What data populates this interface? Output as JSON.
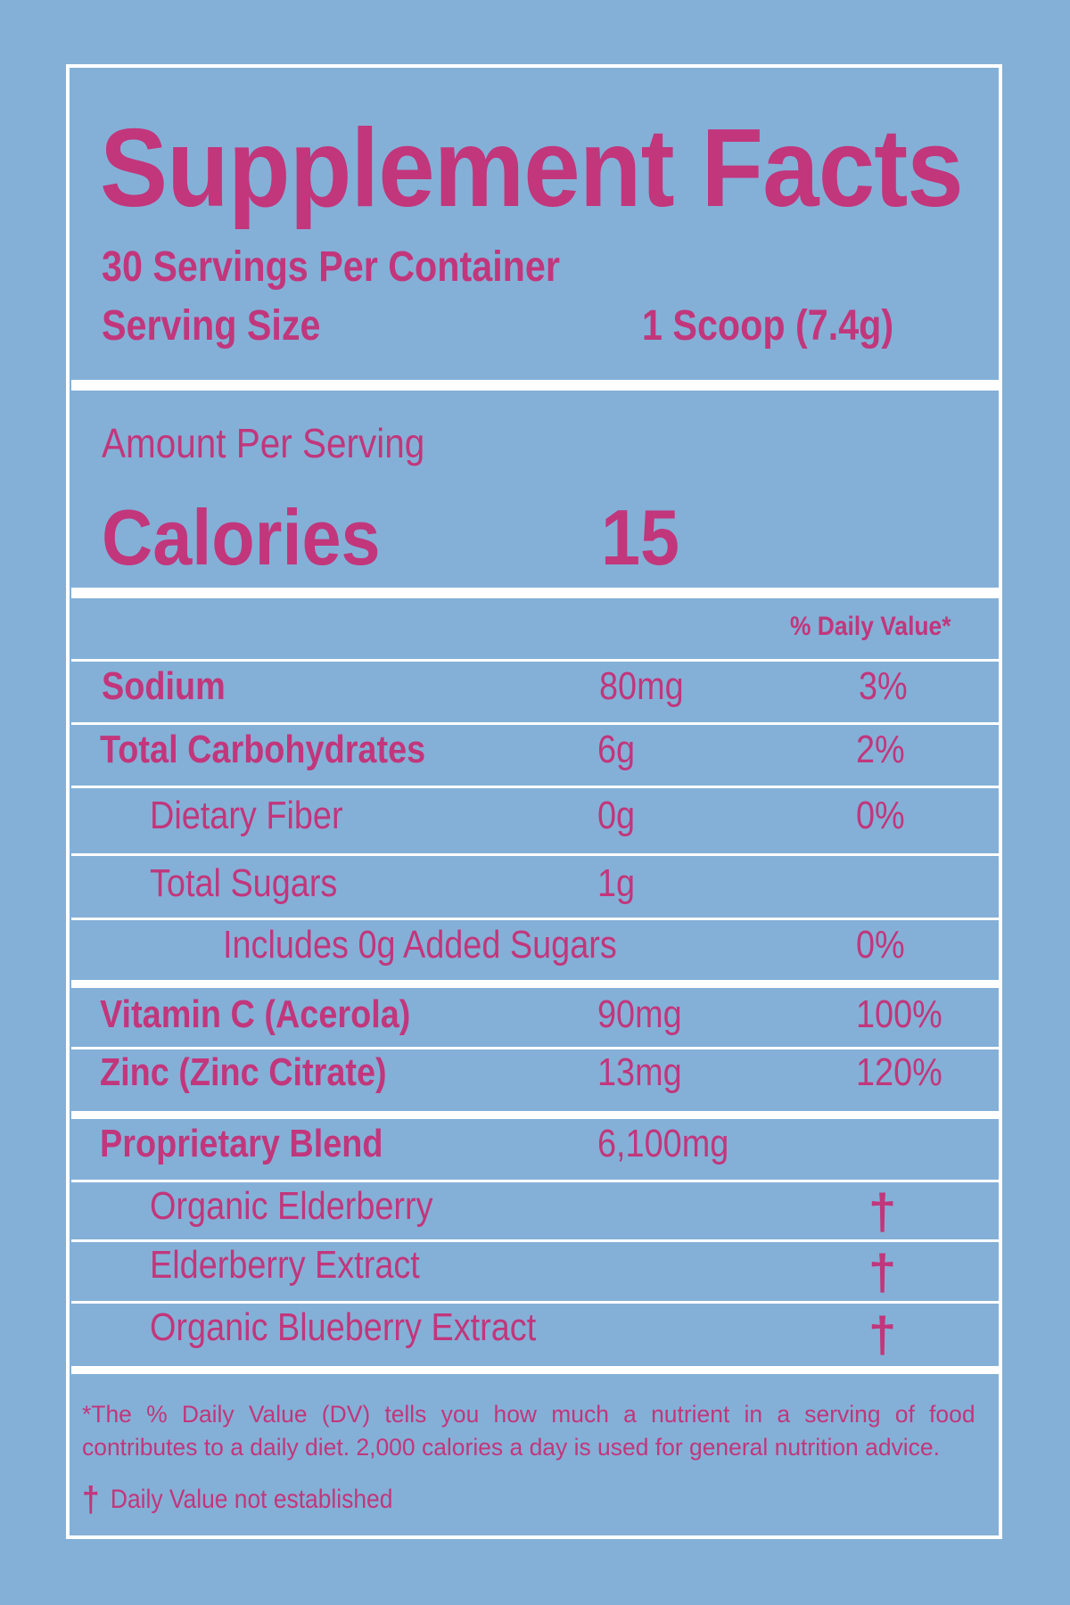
{
  "title": "Supplement Facts",
  "servings_per_container": "30 Servings Per Container",
  "serving_size": {
    "label": "Serving Size",
    "value": "1 Scoop (7.4g)"
  },
  "amount_per_serving": "Amount Per Serving",
  "calories": {
    "label": "Calories",
    "value": "15"
  },
  "daily_value_header": "% Daily Value*",
  "rows": [
    {
      "name": "Sodium",
      "amount": "80mg",
      "dv": "3%"
    },
    {
      "name": "Total Carbohydrates",
      "amount": "6g",
      "dv": "2%"
    },
    {
      "name": "Dietary Fiber",
      "amount": "0g",
      "dv": "0%"
    },
    {
      "name": "Total Sugars",
      "amount": "1g",
      "dv": ""
    },
    {
      "name": "Includes 0g Added Sugars",
      "amount": "",
      "dv": "0%"
    },
    {
      "name": "Vitamin C (Acerola)",
      "amount": "90mg",
      "dv": "100%"
    },
    {
      "name": "Zinc (Zinc Citrate)",
      "amount": "13mg",
      "dv": "120%"
    },
    {
      "name": "Proprietary Blend",
      "amount": "6,100mg",
      "dv": ""
    },
    {
      "name": "Organic Elderberry",
      "amount": "",
      "dv": "†"
    },
    {
      "name": "Elderberry Extract",
      "amount": "",
      "dv": "†"
    },
    {
      "name": "Organic Blueberry Extract",
      "amount": "",
      "dv": "†"
    }
  ],
  "footnote_dv": "*The % Daily Value (DV) tells you how much a nutrient in a serving of food contributes to a daily diet. 2,000 calories a day is used for general nutrition advice.",
  "footnote_dagger": {
    "symbol": "†",
    "text": "Daily Value not established"
  },
  "colors": {
    "background": "#84b0d7",
    "text": "#c2367c",
    "rules": "#ffffff"
  }
}
